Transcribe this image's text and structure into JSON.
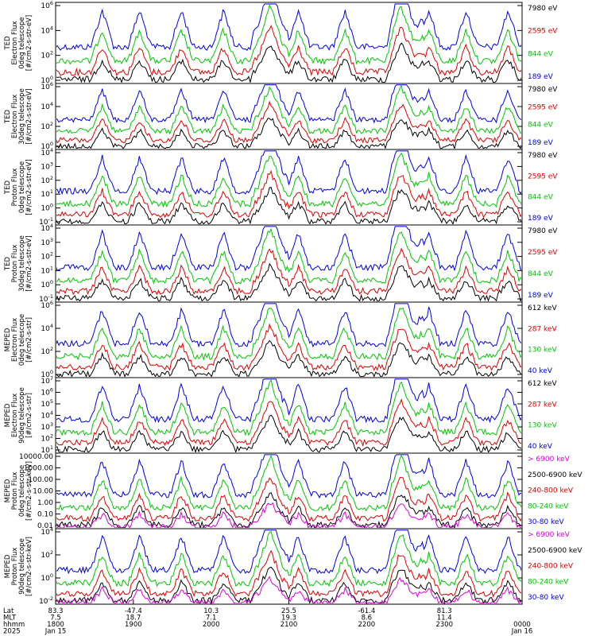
{
  "chart_data": [
    {
      "type": "line",
      "ylabel_lines": [
        "TED",
        "Electron Flux",
        "0deg telescope",
        "[#/cm2-s-str-eV]"
      ],
      "y_ticks": [
        "10^6",
        "10^4",
        "10^2",
        "10^0"
      ],
      "legend": [
        {
          "label": "7980 eV",
          "color": "#000000"
        },
        {
          "label": "2595 eV",
          "color": "#e00000"
        },
        {
          "label": "844 eV",
          "color": "#00c800"
        },
        {
          "label": "189 eV",
          "color": "#0000e0"
        }
      ]
    },
    {
      "type": "line",
      "ylabel_lines": [
        "TED",
        "Electron Flux",
        "30deg telescope",
        "[#/cm2-s-str-eV]"
      ],
      "y_ticks": [
        "10^6",
        "10^4",
        "10^2",
        "10^0"
      ],
      "legend": [
        {
          "label": "7980 eV",
          "color": "#000000"
        },
        {
          "label": "2595 eV",
          "color": "#e00000"
        },
        {
          "label": "844 eV",
          "color": "#00c800"
        },
        {
          "label": "189 eV",
          "color": "#0000e0"
        }
      ]
    },
    {
      "type": "line",
      "ylabel_lines": [
        "TED",
        "Proton Flux",
        "0deg telescope",
        "[#/cm2-s-str-eV]"
      ],
      "y_ticks": [
        "10^4",
        "10^3",
        "10^2",
        "10^1",
        "10^0",
        "10^-1"
      ],
      "legend": [
        {
          "label": "7980 eV",
          "color": "#000000"
        },
        {
          "label": "2595 eV",
          "color": "#e00000"
        },
        {
          "label": "844 eV",
          "color": "#00c800"
        },
        {
          "label": "189 eV",
          "color": "#0000e0"
        }
      ]
    },
    {
      "type": "line",
      "ylabel_lines": [
        "TED",
        "Proton Flux",
        "30deg telescope",
        "[#/cm2-s-str-eV]"
      ],
      "y_ticks": [
        "10^4",
        "10^3",
        "10^2",
        "10^1",
        "10^0",
        "10^-1"
      ],
      "legend": [
        {
          "label": "7980 eV",
          "color": "#000000"
        },
        {
          "label": "2595 eV",
          "color": "#e00000"
        },
        {
          "label": "844 eV",
          "color": "#00c800"
        },
        {
          "label": "189 eV",
          "color": "#0000e0"
        }
      ]
    },
    {
      "type": "line",
      "ylabel_lines": [
        "MEPED",
        "Electron Flux",
        "0deg telescope",
        "[#/cm2-s-str]"
      ],
      "y_ticks": [
        "10^6",
        "10^4",
        "10^2",
        "10^0"
      ],
      "legend": [
        {
          "label": "612 keV",
          "color": "#000000"
        },
        {
          "label": "287 keV",
          "color": "#e00000"
        },
        {
          "label": "130 keV",
          "color": "#00c800"
        },
        {
          "label": "40 keV",
          "color": "#0000e0"
        }
      ]
    },
    {
      "type": "line",
      "ylabel_lines": [
        "MEPED",
        "Electron Flux",
        "90deg telescope",
        "[#/cm2-s-str]"
      ],
      "y_ticks": [
        "10^7",
        "10^6",
        "10^5",
        "10^4",
        "10^3",
        "10^2",
        "10^1"
      ],
      "legend": [
        {
          "label": "612 keV",
          "color": "#000000"
        },
        {
          "label": "287 keV",
          "color": "#e00000"
        },
        {
          "label": "130 keV",
          "color": "#00c800"
        },
        {
          "label": "40 keV",
          "color": "#0000e0"
        }
      ]
    },
    {
      "type": "line",
      "ylabel_lines": [
        "MEPED",
        "Proton Flux",
        "0deg telescope",
        "[#/cm2-s-str-keV]"
      ],
      "y_ticks": [
        "10000.00",
        "1000.00",
        "100.00",
        "10.00",
        "1.00",
        "0.10",
        "0.01"
      ],
      "legend": [
        {
          "label": "> 6900 keV",
          "color": "#e000e0"
        },
        {
          "label": "2500-6900 keV",
          "color": "#000000"
        },
        {
          "label": "240-800 keV",
          "color": "#e00000"
        },
        {
          "label": "80-240 keV",
          "color": "#00c800"
        },
        {
          "label": "30-80 keV",
          "color": "#0000e0"
        }
      ]
    },
    {
      "type": "line",
      "ylabel_lines": [
        "MEPED",
        "Proton Flux",
        "90deg telescope",
        "[#/cm2-s-str-keV]"
      ],
      "y_ticks": [
        "10^4",
        "10^2",
        "10^0",
        "10^-2"
      ],
      "legend": [
        {
          "label": "> 6900 keV",
          "color": "#e000e0"
        },
        {
          "label": "2500-6900 keV",
          "color": "#000000"
        },
        {
          "label": "240-800 keV",
          "color": "#e00000"
        },
        {
          "label": "80-240 keV",
          "color": "#00c800"
        },
        {
          "label": "30-80 keV",
          "color": "#0000e0"
        }
      ]
    }
  ],
  "x_axis": {
    "row_labels": [
      "Lat",
      "MLT",
      "hhmm",
      "2025"
    ],
    "ticks": [
      {
        "lat": "83.3",
        "mlt": "7.5",
        "hhmm": "1800",
        "date": "Jan 15"
      },
      {
        "lat": "-47.4",
        "mlt": "18.7",
        "hhmm": "1900",
        "date": ""
      },
      {
        "lat": "10.3",
        "mlt": "7.1",
        "hhmm": "2000",
        "date": ""
      },
      {
        "lat": "25.5",
        "mlt": "19.3",
        "hhmm": "2100",
        "date": ""
      },
      {
        "lat": "-61.4",
        "mlt": "8.6",
        "hhmm": "2200",
        "date": ""
      },
      {
        "lat": "81.3",
        "mlt": "11.4",
        "hhmm": "2300",
        "date": ""
      },
      {
        "lat": "",
        "mlt": "",
        "hhmm": "0000",
        "date": "Jan 16"
      }
    ]
  },
  "colors": {
    "black": "#000000",
    "red": "#e00000",
    "green": "#00c800",
    "blue": "#0000e0",
    "magenta": "#e000e0"
  }
}
